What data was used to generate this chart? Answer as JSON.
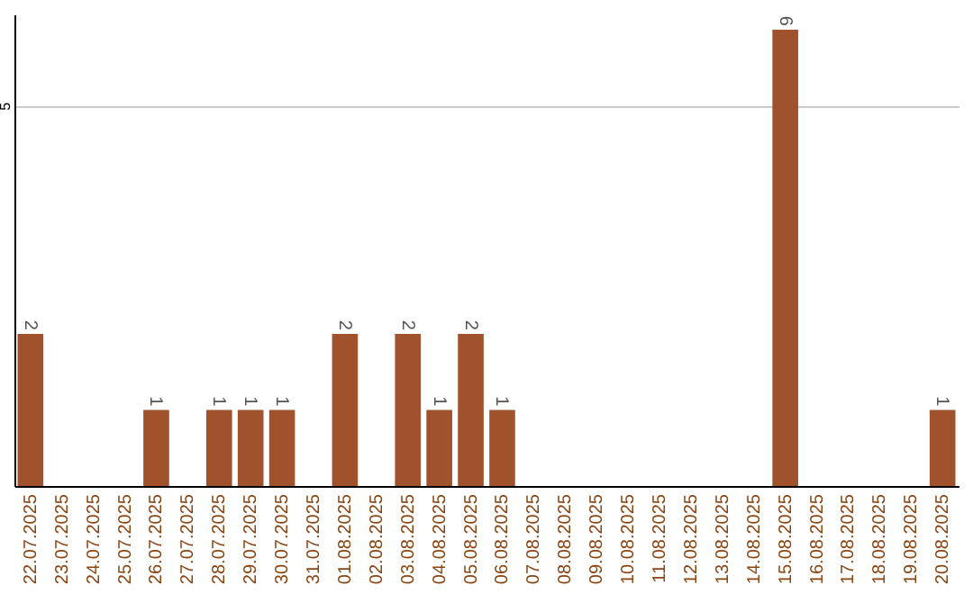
{
  "chart_data": {
    "type": "bar",
    "categories": [
      "22.07.2025",
      "23.07.2025",
      "24.07.2025",
      "25.07.2025",
      "26.07.2025",
      "27.07.2025",
      "28.07.2025",
      "29.07.2025",
      "30.07.2025",
      "31.07.2025",
      "01.08.2025",
      "02.08.2025",
      "03.08.2025",
      "04.08.2025",
      "05.08.2025",
      "06.08.2025",
      "07.08.2025",
      "08.08.2025",
      "09.08.2025",
      "10.08.2025",
      "11.08.2025",
      "12.08.2025",
      "13.08.2025",
      "14.08.2025",
      "15.08.2025",
      "16.08.2025",
      "17.08.2025",
      "18.08.2025",
      "19.08.2025",
      "20.08.2025"
    ],
    "values": [
      2,
      0,
      0,
      0,
      1,
      0,
      1,
      1,
      1,
      0,
      2,
      0,
      2,
      1,
      2,
      1,
      0,
      0,
      0,
      0,
      0,
      0,
      0,
      0,
      6,
      0,
      0,
      0,
      0,
      1
    ],
    "value_labels": [
      "2",
      null,
      null,
      null,
      "1",
      null,
      "1",
      "1",
      "1",
      null,
      "2",
      null,
      "2",
      "1",
      "2",
      "1",
      null,
      null,
      null,
      null,
      null,
      null,
      null,
      null,
      "6",
      null,
      null,
      null,
      null,
      "1"
    ],
    "color": "#a0522d",
    "ylim": [
      0,
      6.2
    ],
    "yticks": [
      5
    ],
    "grid": "y"
  }
}
